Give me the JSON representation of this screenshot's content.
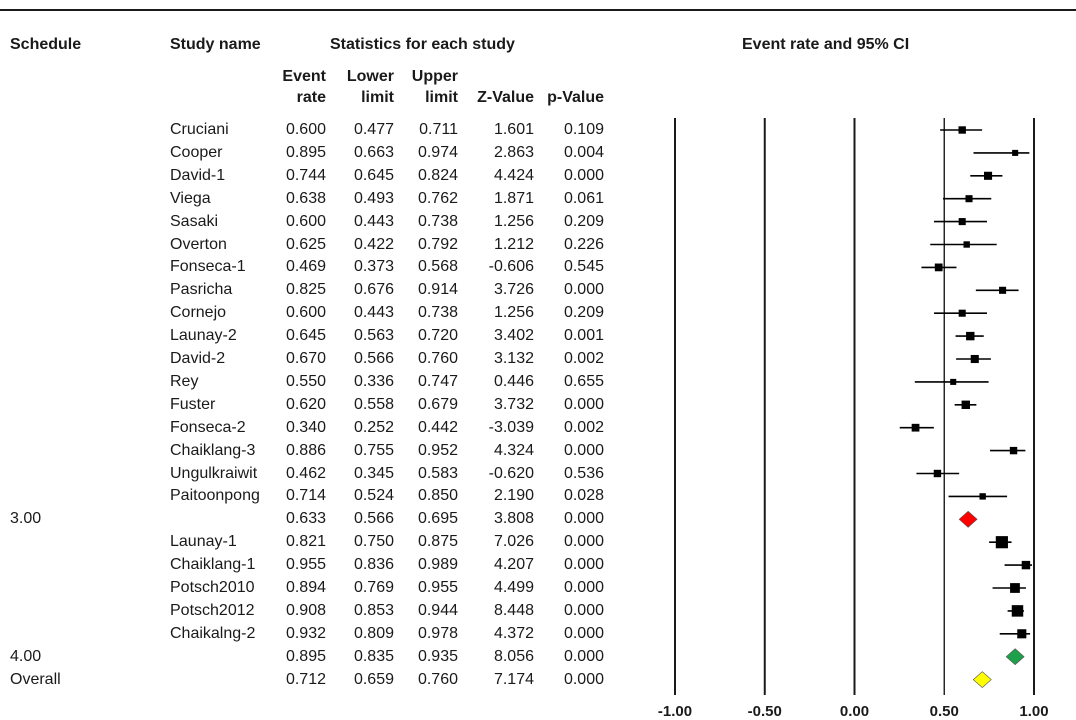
{
  "headers": {
    "schedule": "Schedule",
    "study_name": "Study name",
    "statistics": "Statistics for each study",
    "plot_title": "Event rate and 95% CI",
    "event_rate_1": "Event",
    "event_rate_2": "rate",
    "lower_1": "Lower",
    "lower_2": "limit",
    "upper_1": "Upper",
    "upper_2": "limit",
    "z_value": "Z-Value",
    "p_value": "p-Value"
  },
  "chart_data": {
    "type": "forest",
    "title": "Event rate and 95% CI",
    "xlim": [
      -1.0,
      1.0
    ],
    "x_ticks": [
      -1.0,
      -0.5,
      0.0,
      0.5,
      1.0
    ],
    "x_tick_labels": [
      "-1.00",
      "-0.50",
      "0.00",
      "0.50",
      "1.00"
    ],
    "colors": {
      "summary_3": "#ff0000",
      "summary_4": "#1fa04b",
      "overall": "#ffff00",
      "marker": "#000000"
    },
    "rows": [
      {
        "schedule": "",
        "study": "Cruciani",
        "rate": "0.600",
        "lower": "0.477",
        "upper": "0.711",
        "z": "1.601",
        "p": "0.109",
        "kind": "study",
        "weight": 1.0
      },
      {
        "schedule": "",
        "study": "Cooper",
        "rate": "0.895",
        "lower": "0.663",
        "upper": "0.974",
        "z": "2.863",
        "p": "0.004",
        "kind": "study",
        "weight": 0.6
      },
      {
        "schedule": "",
        "study": "David-1",
        "rate": "0.744",
        "lower": "0.645",
        "upper": "0.824",
        "z": "4.424",
        "p": "0.000",
        "kind": "study",
        "weight": 1.2
      },
      {
        "schedule": "",
        "study": "Viega",
        "rate": "0.638",
        "lower": "0.493",
        "upper": "0.762",
        "z": "1.871",
        "p": "0.061",
        "kind": "study",
        "weight": 0.9
      },
      {
        "schedule": "",
        "study": "Sasaki",
        "rate": "0.600",
        "lower": "0.443",
        "upper": "0.738",
        "z": "1.256",
        "p": "0.209",
        "kind": "study",
        "weight": 0.9
      },
      {
        "schedule": "",
        "study": "Overton",
        "rate": "0.625",
        "lower": "0.422",
        "upper": "0.792",
        "z": "1.212",
        "p": "0.226",
        "kind": "study",
        "weight": 0.7
      },
      {
        "schedule": "",
        "study": "Fonseca-1",
        "rate": "0.469",
        "lower": "0.373",
        "upper": "0.568",
        "z": "-0.606",
        "p": "0.545",
        "kind": "study",
        "weight": 1.1
      },
      {
        "schedule": "",
        "study": "Pasricha",
        "rate": "0.825",
        "lower": "0.676",
        "upper": "0.914",
        "z": "3.726",
        "p": "0.000",
        "kind": "study",
        "weight": 0.9
      },
      {
        "schedule": "",
        "study": "Cornejo",
        "rate": "0.600",
        "lower": "0.443",
        "upper": "0.738",
        "z": "1.256",
        "p": "0.209",
        "kind": "study",
        "weight": 0.9
      },
      {
        "schedule": "",
        "study": "Launay-2",
        "rate": "0.645",
        "lower": "0.563",
        "upper": "0.720",
        "z": "3.402",
        "p": "0.001",
        "kind": "study",
        "weight": 1.3
      },
      {
        "schedule": "",
        "study": "David-2",
        "rate": "0.670",
        "lower": "0.566",
        "upper": "0.760",
        "z": "3.132",
        "p": "0.002",
        "kind": "study",
        "weight": 1.2
      },
      {
        "schedule": "",
        "study": "Rey",
        "rate": "0.550",
        "lower": "0.336",
        "upper": "0.747",
        "z": "0.446",
        "p": "0.655",
        "kind": "study",
        "weight": 0.6
      },
      {
        "schedule": "",
        "study": "Fuster",
        "rate": "0.620",
        "lower": "0.558",
        "upper": "0.679",
        "z": "3.732",
        "p": "0.000",
        "kind": "study",
        "weight": 1.3
      },
      {
        "schedule": "",
        "study": "Fonseca-2",
        "rate": "0.340",
        "lower": "0.252",
        "upper": "0.442",
        "z": "-3.039",
        "p": "0.002",
        "kind": "study",
        "weight": 1.1
      },
      {
        "schedule": "",
        "study": "Chaiklang-3",
        "rate": "0.886",
        "lower": "0.755",
        "upper": "0.952",
        "z": "4.324",
        "p": "0.000",
        "kind": "study",
        "weight": 1.0
      },
      {
        "schedule": "",
        "study": "Ungulkraiwit",
        "rate": "0.462",
        "lower": "0.345",
        "upper": "0.583",
        "z": "-0.620",
        "p": "0.536",
        "kind": "study",
        "weight": 1.0
      },
      {
        "schedule": "",
        "study": "Paitoonpong",
        "rate": "0.714",
        "lower": "0.524",
        "upper": "0.850",
        "z": "2.190",
        "p": "0.028",
        "kind": "study",
        "weight": 0.7
      },
      {
        "schedule": "3.00",
        "study": "",
        "rate": "0.633",
        "lower": "0.566",
        "upper": "0.695",
        "z": "3.808",
        "p": "0.000",
        "kind": "summary",
        "color": "#ff0000"
      },
      {
        "schedule": "",
        "study": "Launay-1",
        "rate": "0.821",
        "lower": "0.750",
        "upper": "0.875",
        "z": "7.026",
        "p": "0.000",
        "kind": "study",
        "weight": 2.4
      },
      {
        "schedule": "",
        "study": "Chaiklang-1",
        "rate": "0.955",
        "lower": "0.836",
        "upper": "0.989",
        "z": "4.207",
        "p": "0.000",
        "kind": "study",
        "weight": 1.3
      },
      {
        "schedule": "",
        "study": "Potsch2010",
        "rate": "0.894",
        "lower": "0.769",
        "upper": "0.955",
        "z": "4.499",
        "p": "0.000",
        "kind": "study",
        "weight": 1.7
      },
      {
        "schedule": "",
        "study": "Potsch2012",
        "rate": "0.908",
        "lower": "0.853",
        "upper": "0.944",
        "z": "8.448",
        "p": "0.000",
        "kind": "study",
        "weight": 2.2
      },
      {
        "schedule": "",
        "study": "Chaikalng-2",
        "rate": "0.932",
        "lower": "0.809",
        "upper": "0.978",
        "z": "4.372",
        "p": "0.000",
        "kind": "study",
        "weight": 1.5
      },
      {
        "schedule": "4.00",
        "study": "",
        "rate": "0.895",
        "lower": "0.835",
        "upper": "0.935",
        "z": "8.056",
        "p": "0.000",
        "kind": "summary",
        "color": "#1fa04b"
      },
      {
        "schedule": "Overall",
        "study": "",
        "rate": "0.712",
        "lower": "0.659",
        "upper": "0.760",
        "z": "7.174",
        "p": "0.000",
        "kind": "summary",
        "color": "#ffff00"
      }
    ]
  }
}
